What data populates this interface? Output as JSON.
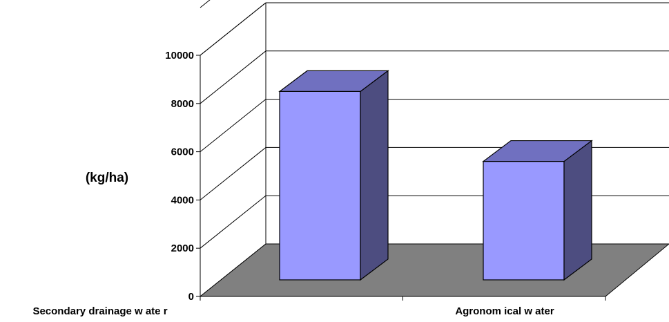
{
  "chart_data": {
    "type": "bar",
    "ylabel": "(kg/ha)",
    "categories": [
      "Secondary drainage w ate r",
      "Agronom ical w ater"
    ],
    "series": [
      {
        "values": [
          8500,
          5600
        ]
      }
    ],
    "ylim": [
      0,
      10000
    ],
    "yticks": [
      0,
      2000,
      4000,
      6000,
      8000,
      10000
    ],
    "grid": true,
    "colors": {
      "bar_front": "#9999ff",
      "bar_top": "#7070c0",
      "bar_side": "#4d4d80",
      "floor": "#808080",
      "grid": "#000000"
    }
  }
}
